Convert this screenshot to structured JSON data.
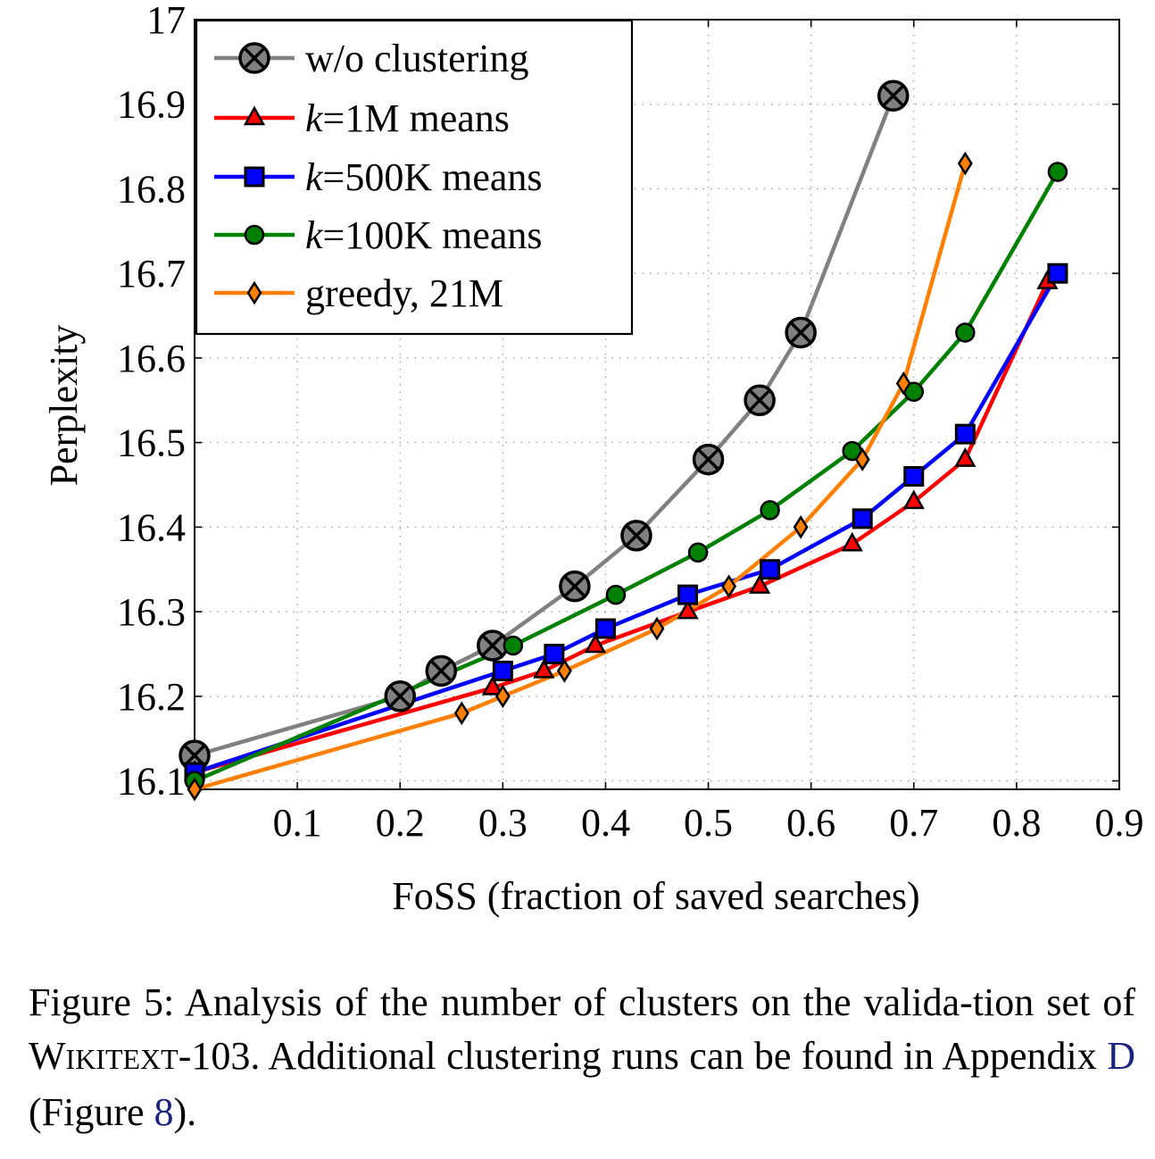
{
  "chart_data": {
    "type": "line",
    "xlabel": "FoSS (fraction of saved searches)",
    "ylabel": "Perplexity",
    "xlim": [
      0,
      0.9
    ],
    "ylim": [
      16.09,
      17
    ],
    "xticks": [
      "0.1",
      "0.2",
      "0.3",
      "0.4",
      "0.5",
      "0.6",
      "0.7",
      "0.8",
      "0.9"
    ],
    "yticks": [
      "16.1",
      "16.2",
      "16.3",
      "16.4",
      "16.5",
      "16.6",
      "16.7",
      "16.8",
      "16.9",
      "17"
    ],
    "grid": true,
    "legend_position": "top-left",
    "series": [
      {
        "name": "w/o clustering",
        "color": "#808080",
        "marker": "otimes",
        "x": [
          0.0,
          0.2,
          0.24,
          0.29,
          0.37,
          0.43,
          0.5,
          0.55,
          0.59,
          0.68
        ],
        "y": [
          16.13,
          16.2,
          16.23,
          16.26,
          16.33,
          16.39,
          16.48,
          16.55,
          16.63,
          16.91
        ]
      },
      {
        "name": "k=1M means",
        "color": "#ff0000",
        "marker": "triangle",
        "x": [
          0.0,
          0.29,
          0.34,
          0.39,
          0.48,
          0.55,
          0.64,
          0.7,
          0.75,
          0.83
        ],
        "y": [
          16.11,
          16.21,
          16.23,
          16.26,
          16.3,
          16.33,
          16.38,
          16.43,
          16.48,
          16.69
        ]
      },
      {
        "name": "k=500K means",
        "color": "#0000ff",
        "marker": "square",
        "x": [
          0.0,
          0.3,
          0.35,
          0.4,
          0.48,
          0.56,
          0.65,
          0.7,
          0.75,
          0.84
        ],
        "y": [
          16.11,
          16.23,
          16.25,
          16.28,
          16.32,
          16.35,
          16.41,
          16.46,
          16.51,
          16.7
        ]
      },
      {
        "name": "k=100K means",
        "color": "#008000",
        "marker": "circle",
        "x": [
          0.0,
          0.31,
          0.41,
          0.49,
          0.56,
          0.64,
          0.7,
          0.75,
          0.84
        ],
        "y": [
          16.1,
          16.26,
          16.32,
          16.37,
          16.42,
          16.49,
          16.56,
          16.63,
          16.82
        ]
      },
      {
        "name": "greedy, 21M",
        "color": "#ff8000",
        "marker": "diamond",
        "x": [
          0.0,
          0.26,
          0.3,
          0.36,
          0.45,
          0.52,
          0.59,
          0.65,
          0.69,
          0.75
        ],
        "y": [
          16.09,
          16.18,
          16.2,
          16.23,
          16.28,
          16.33,
          16.4,
          16.48,
          16.57,
          16.83
        ]
      }
    ]
  },
  "legend": {
    "w_o_clustering": "w/o clustering",
    "k1m_var": "k",
    "k1m_rest": "=1M means",
    "k500k_var": "k",
    "k500k_rest": "=500K means",
    "k100k_var": "k",
    "k100k_rest": "=100K means",
    "greedy": "greedy, 21M"
  },
  "caption": {
    "part1": "Figure 5: Analysis of the number of clusters on the valida-tion set of ",
    "dataset_big1": "W",
    "dataset_small1": "IKITEXT",
    "dataset_rest": "-103. Additional clustering runs can be found in Appendix ",
    "appendix_ref": "D",
    "part2": " (Figure ",
    "figure_ref": "8",
    "part3": ")."
  }
}
